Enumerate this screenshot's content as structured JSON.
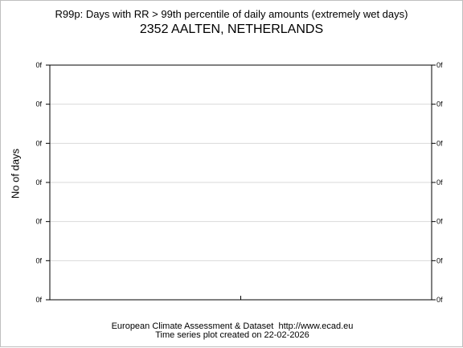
{
  "chart_data": {
    "type": "bar",
    "title": "R99p: Days with RR > 99th percentile of daily amounts (extremely wet days)",
    "subtitle": "2352 AALTEN, NETHERLANDS",
    "xlabel": "",
    "ylabel": "No of days",
    "categories": [],
    "values": [],
    "y_tick_labels": [
      "0f",
      "0f",
      "0f",
      "0f",
      "0f",
      "0f",
      "0f"
    ],
    "grid": true,
    "legend": "none",
    "colors": {
      "axis": "#000000",
      "grid": "#d9d9d9",
      "background": "#ffffff"
    }
  },
  "footer": {
    "line1": "European Climate Assessment & Dataset  http://www.ecad.eu",
    "line2": "Time series plot created on 22-02-2026"
  }
}
